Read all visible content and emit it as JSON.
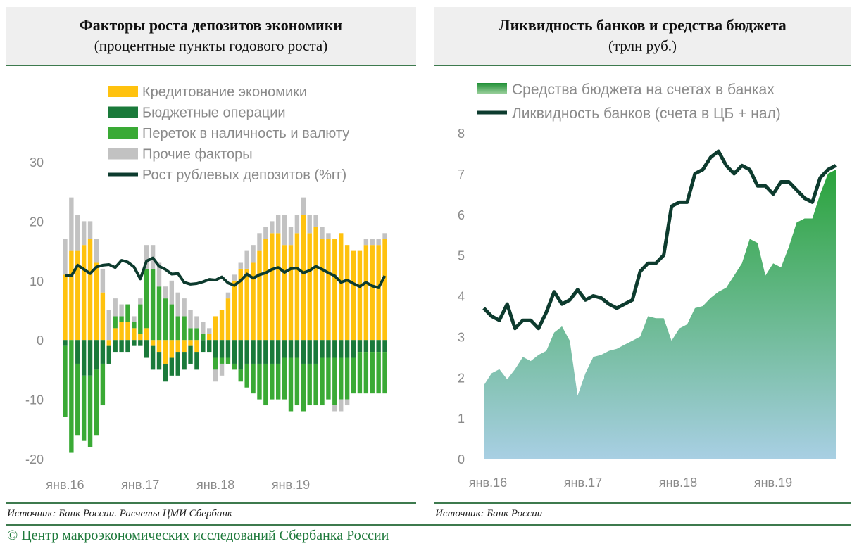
{
  "left_panel": {
    "title": "Факторы роста депозитов экономики",
    "subtitle": "(процентные пункты годового роста)",
    "source": "Источник: Банк России. Расчеты ЦМИ Сбербанк"
  },
  "right_panel": {
    "title": "Ликвидность банков и средства бюджета",
    "subtitle": "(трлн руб.)",
    "source": "Источник: Банк России"
  },
  "copyright": "© Центр макроэкономических исследований Сбербанка России",
  "chart_data": [
    {
      "type": "bar",
      "stacked": true,
      "ylim": [
        -20,
        30
      ],
      "yticks": [
        "30",
        "20",
        "10",
        "0",
        "-10",
        "-20"
      ],
      "xtick_labels": [
        "янв.16",
        "янв.17",
        "янв.18",
        "янв.19"
      ],
      "legend_position": "top",
      "colors": {
        "credit": "#ffc20e",
        "budget": "#1a7a3a",
        "cash": "#3aaa35",
        "other": "#c2c2c2",
        "line": "#0d3b2e"
      },
      "series": [
        {
          "name": "Кредитование экономики",
          "key": "credit",
          "values": [
            11,
            15,
            15,
            16,
            17,
            13,
            8,
            -1,
            2,
            3,
            3,
            2,
            1,
            2,
            -1,
            -2,
            -4,
            -3,
            -2,
            -2,
            -1,
            -2,
            0,
            1,
            4,
            5,
            7,
            10,
            12,
            12,
            13,
            15,
            17,
            18,
            18,
            16,
            16,
            18,
            21,
            18,
            19,
            17,
            17,
            17,
            18,
            16,
            15,
            15,
            16,
            16,
            16,
            17
          ]
        },
        {
          "name": "Бюджетные операции",
          "key": "budget",
          "values": [
            -1,
            0,
            -4,
            -6,
            -6,
            -5,
            -4,
            -3,
            -2,
            -2,
            -2,
            -1,
            -1,
            -3,
            -4,
            -3,
            -3,
            -3,
            -4,
            -3,
            -3,
            -3,
            -2,
            -2,
            -3,
            -3,
            -3,
            -4,
            -5,
            -4,
            -4,
            -4,
            -4,
            -4,
            -4,
            -3,
            -3,
            -3,
            -4,
            -4,
            -4,
            -3,
            -3,
            -3,
            -3,
            -3,
            -3,
            -2,
            -2,
            -2,
            -2,
            -2
          ]
        },
        {
          "name": "Переток в наличность и валюту",
          "key": "cash",
          "values": [
            -12,
            -19,
            -12,
            -11,
            -12,
            -11,
            -7,
            0,
            2,
            1,
            3,
            1,
            5,
            10,
            12,
            9,
            7,
            6,
            4,
            4,
            2,
            2,
            1,
            0,
            -2,
            -1,
            -1,
            -1,
            -2,
            -4,
            -5,
            -6,
            -7,
            -6,
            -6,
            -7,
            -9,
            -8,
            -8,
            -7,
            -7,
            -8,
            -7,
            -8,
            -7,
            -7,
            -6,
            -7,
            -7,
            -7,
            -7,
            -7
          ]
        },
        {
          "name": "Прочие факторы",
          "key": "other",
          "values": [
            6,
            9,
            6,
            4,
            3,
            4,
            4,
            5,
            3,
            2,
            0,
            1,
            1,
            4,
            4,
            4,
            2,
            4,
            4,
            3,
            3,
            2,
            2,
            1,
            -2,
            -2,
            1,
            1,
            1,
            3,
            3,
            3,
            2,
            2,
            3,
            5,
            3,
            3,
            3,
            3,
            2,
            2,
            1,
            -1,
            -2,
            -1,
            0,
            0,
            1,
            1,
            1,
            1
          ]
        },
        {
          "name": "Рост рублевых депозитов (%гг)",
          "key": "line",
          "type": "line",
          "values": [
            10.8,
            10.8,
            12.6,
            11.9,
            11.2,
            12.3,
            12.6,
            12.7,
            12.2,
            13.4,
            13.1,
            12.3,
            10.3,
            13.3,
            13.8,
            12.4,
            11.9,
            11.1,
            11.2,
            9.7,
            9.4,
            9.5,
            9.8,
            10.2,
            10.1,
            10.6,
            9.6,
            9.2,
            10.0,
            11.1,
            10.4,
            11.0,
            11.3,
            11.9,
            12.2,
            11.4,
            12.0,
            12.1,
            11.3,
            11.7,
            12.4,
            11.9,
            11.3,
            10.8,
            9.7,
            10.1,
            9.5,
            9.0,
            9.7,
            9.1,
            8.8,
            10.8
          ]
        }
      ]
    },
    {
      "type": "area",
      "ylim": [
        0,
        8
      ],
      "yticks": [
        "8",
        "7",
        "6",
        "5",
        "4",
        "3",
        "2",
        "1",
        "0"
      ],
      "xtick_labels": [
        "янв.16",
        "янв.17",
        "янв.18",
        "янв.19"
      ],
      "legend_position": "top",
      "series": [
        {
          "name": "Средства бюджета на счетах в банках",
          "key": "budget_funds",
          "type": "area",
          "color": "#2aa33b",
          "values": [
            1.8,
            2.1,
            2.2,
            1.95,
            2.2,
            2.5,
            2.4,
            2.55,
            2.65,
            3.1,
            3.25,
            2.9,
            1.55,
            2.1,
            2.5,
            2.55,
            2.65,
            2.7,
            2.8,
            2.9,
            3.0,
            3.5,
            3.45,
            3.45,
            2.9,
            3.2,
            3.3,
            3.7,
            3.75,
            3.95,
            4.1,
            4.2,
            4.5,
            4.8,
            5.4,
            5.3,
            4.5,
            4.8,
            4.7,
            5.2,
            5.8,
            5.9,
            5.9,
            6.5,
            7.0,
            7.1
          ]
        },
        {
          "name": "Ликвидность банков (счета в ЦБ + нал)",
          "key": "liquidity",
          "type": "line",
          "color": "#0d3b2e",
          "values": [
            3.7,
            3.5,
            3.4,
            3.8,
            3.2,
            3.4,
            3.4,
            3.2,
            3.6,
            4.1,
            3.8,
            3.9,
            4.15,
            3.9,
            4.0,
            3.95,
            3.8,
            3.7,
            3.8,
            3.9,
            4.6,
            4.8,
            4.8,
            5.0,
            6.2,
            6.3,
            6.3,
            7.0,
            7.1,
            7.4,
            7.55,
            7.2,
            7.0,
            7.2,
            7.1,
            6.7,
            6.7,
            6.5,
            6.8,
            6.8,
            6.6,
            6.4,
            6.3,
            6.9,
            7.1,
            7.2
          ]
        }
      ]
    }
  ]
}
